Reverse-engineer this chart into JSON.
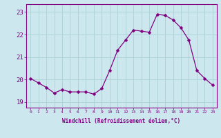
{
  "x": [
    0,
    1,
    2,
    3,
    4,
    5,
    6,
    7,
    8,
    9,
    10,
    11,
    12,
    13,
    14,
    15,
    16,
    17,
    18,
    19,
    20,
    21,
    22,
    23
  ],
  "y": [
    20.05,
    19.85,
    19.65,
    19.4,
    19.55,
    19.45,
    19.45,
    19.45,
    19.35,
    19.6,
    20.4,
    21.3,
    21.75,
    22.2,
    22.15,
    22.1,
    22.9,
    22.85,
    22.65,
    22.3,
    21.75,
    20.4,
    20.05,
    19.75
  ],
  "line_color": "#800080",
  "marker": "D",
  "marker_size": 2.5,
  "bg_color": "#cce8ee",
  "grid_color": "#aed4da",
  "xlabel": "Windchill (Refroidissement éolien,°C)",
  "ylabel_ticks": [
    19,
    20,
    21,
    22,
    23
  ],
  "xtick_labels": [
    "0",
    "1",
    "2",
    "3",
    "4",
    "5",
    "6",
    "7",
    "8",
    "9",
    "10",
    "11",
    "12",
    "13",
    "14",
    "15",
    "16",
    "17",
    "18",
    "19",
    "20",
    "21",
    "22",
    "23"
  ],
  "ylim": [
    18.75,
    23.35
  ],
  "xlim": [
    -0.5,
    23.5
  ],
  "axis_color": "#800080",
  "tick_color": "#800080",
  "label_color": "#800080"
}
